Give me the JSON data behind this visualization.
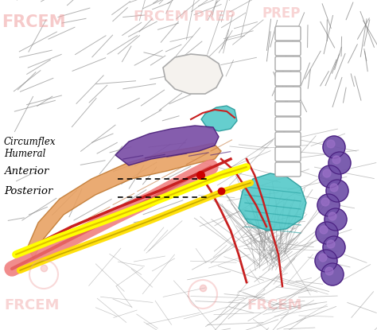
{
  "bg_color": "#ffffff",
  "watermark_color": "#f0a0a0",
  "labels": {
    "circumflex_humeral": "Circumflex\nHumeral",
    "anterior": "Anterior",
    "posterior": "Posterior"
  },
  "colors": {
    "purple_nerve": "#7B4FA6",
    "orange_muscle": "#E8A060",
    "cyan_muscle": "#50C8C8",
    "pink_vessel": "#F08080",
    "yellow_nerve": "#FFFF00",
    "yellow_nerve2": "#FFE000",
    "red_vessel": "#C82020",
    "grape_nodes": "#7050A8",
    "white_tendon": "#F5F0E8",
    "muscle_line": "#909090",
    "sketch_dark": "#505050"
  },
  "fig_w": 4.74,
  "fig_h": 4.15,
  "dpi": 100
}
